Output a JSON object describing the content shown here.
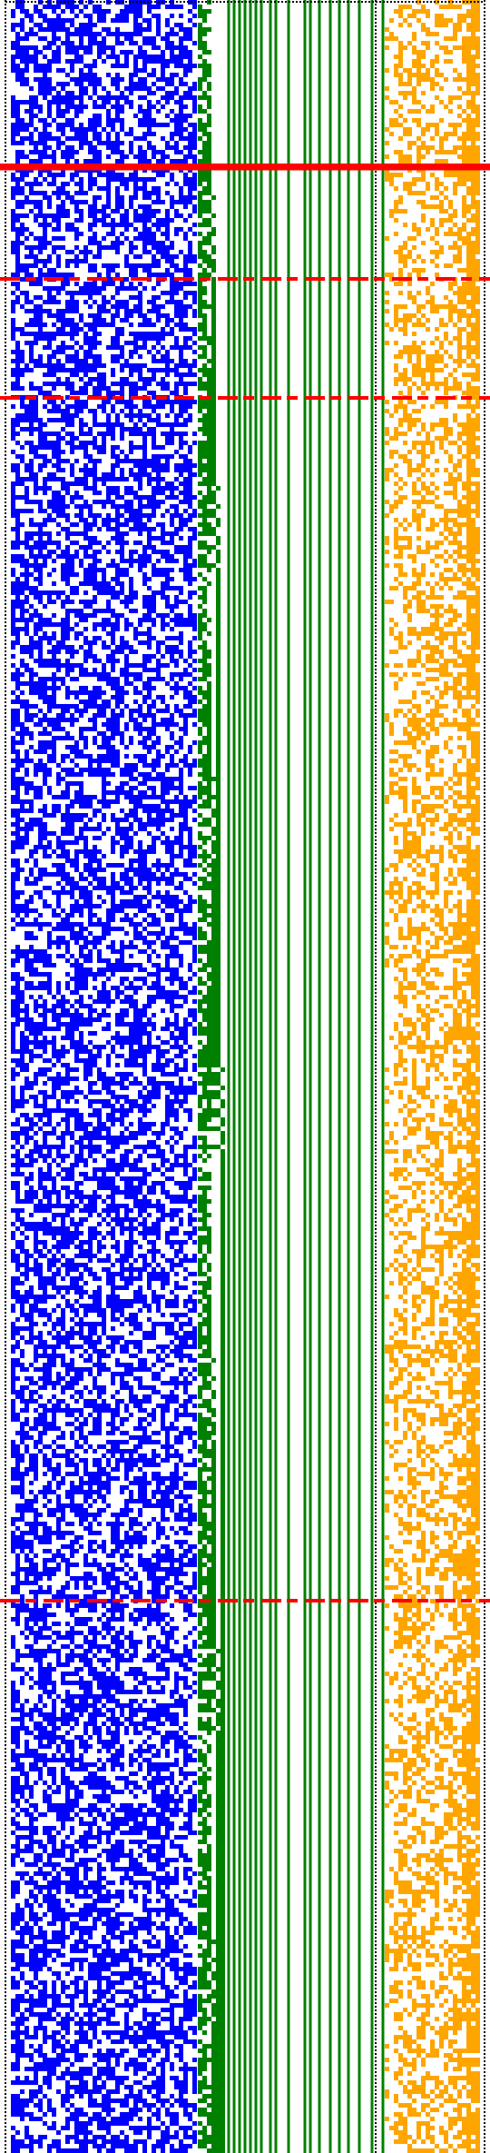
{
  "page": {
    "background": "#ffffff"
  },
  "colors": {
    "border": "#000000",
    "left_cells": "#0000ff",
    "counter_cells": "#008000",
    "right_cells": "#ffa500",
    "marker_lines": "#ff0000"
  },
  "visualization": {
    "type": "cellular-pattern",
    "segments": [
      "left-noise",
      "counter-grid",
      "vertical-lines",
      "right-noise"
    ]
  }
}
